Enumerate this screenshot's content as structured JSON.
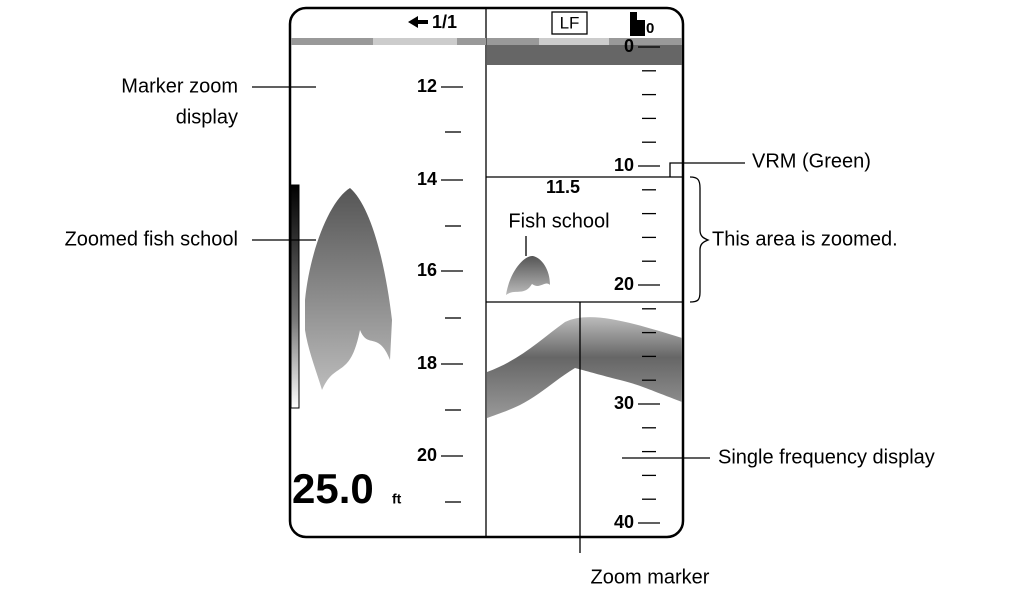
{
  "screen": {
    "header": {
      "page": "1/1",
      "frequency": "LF",
      "icon_digit": "0"
    },
    "left_panel": {
      "scale": [
        "12",
        "14",
        "16",
        "18",
        "20"
      ],
      "depth": "25.0",
      "depth_unit": "ft"
    },
    "right_panel": {
      "scale": [
        "0",
        "10",
        "20",
        "30",
        "40"
      ],
      "vrm_depth": "11.5",
      "fish_label": "Fish school"
    }
  },
  "callouts": {
    "marker_zoom": [
      "Marker zoom",
      "display"
    ],
    "zoomed_fish": "Zoomed fish school",
    "vrm": "VRM (Green)",
    "zoomed_area": "This area is zoomed.",
    "single_freq": "Single frequency display",
    "zoom_marker": "Zoom marker"
  }
}
